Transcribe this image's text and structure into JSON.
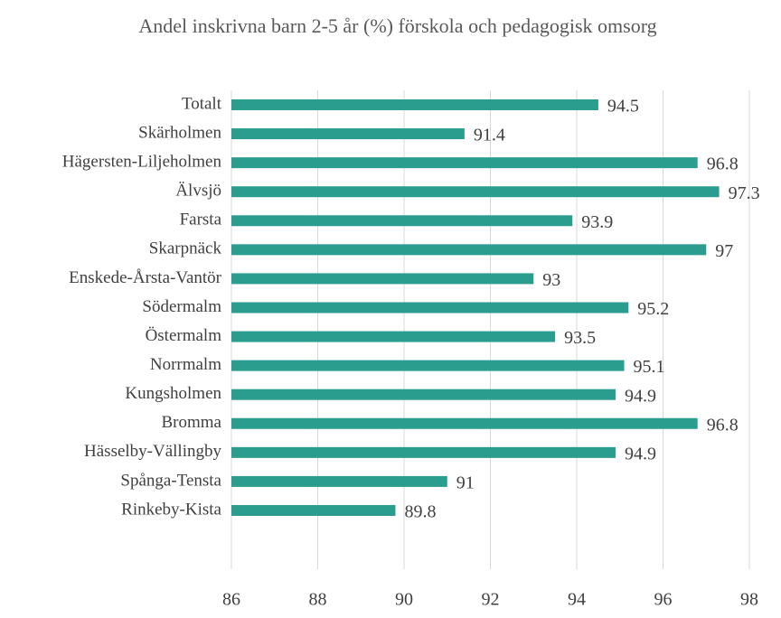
{
  "chart_data": {
    "type": "bar",
    "orientation": "horizontal",
    "title": "Andel inskrivna barn 2-5 år (%) förskola och pedagogisk omsorg",
    "categories": [
      "Totalt",
      "Skärholmen",
      "Hägersten-Liljeholmen",
      "Älvsjö",
      "Farsta",
      "Skarpnäck",
      "Enskede-Årsta-Vantör",
      "Södermalm",
      "Östermalm",
      "Norrmalm",
      "Kungsholmen",
      "Bromma",
      "Hässelby-Vällingby",
      "Spånga-Tensta",
      "Rinkeby-Kista"
    ],
    "values": [
      94.5,
      91.4,
      96.8,
      97.3,
      93.9,
      97,
      93,
      95.2,
      93.5,
      95.1,
      94.9,
      96.8,
      94.9,
      91,
      89.8
    ],
    "color": "#2a9d8f",
    "xlim": [
      86,
      98
    ],
    "xticks": [
      86,
      88,
      90,
      92,
      94,
      96,
      98
    ],
    "grid": true
  }
}
